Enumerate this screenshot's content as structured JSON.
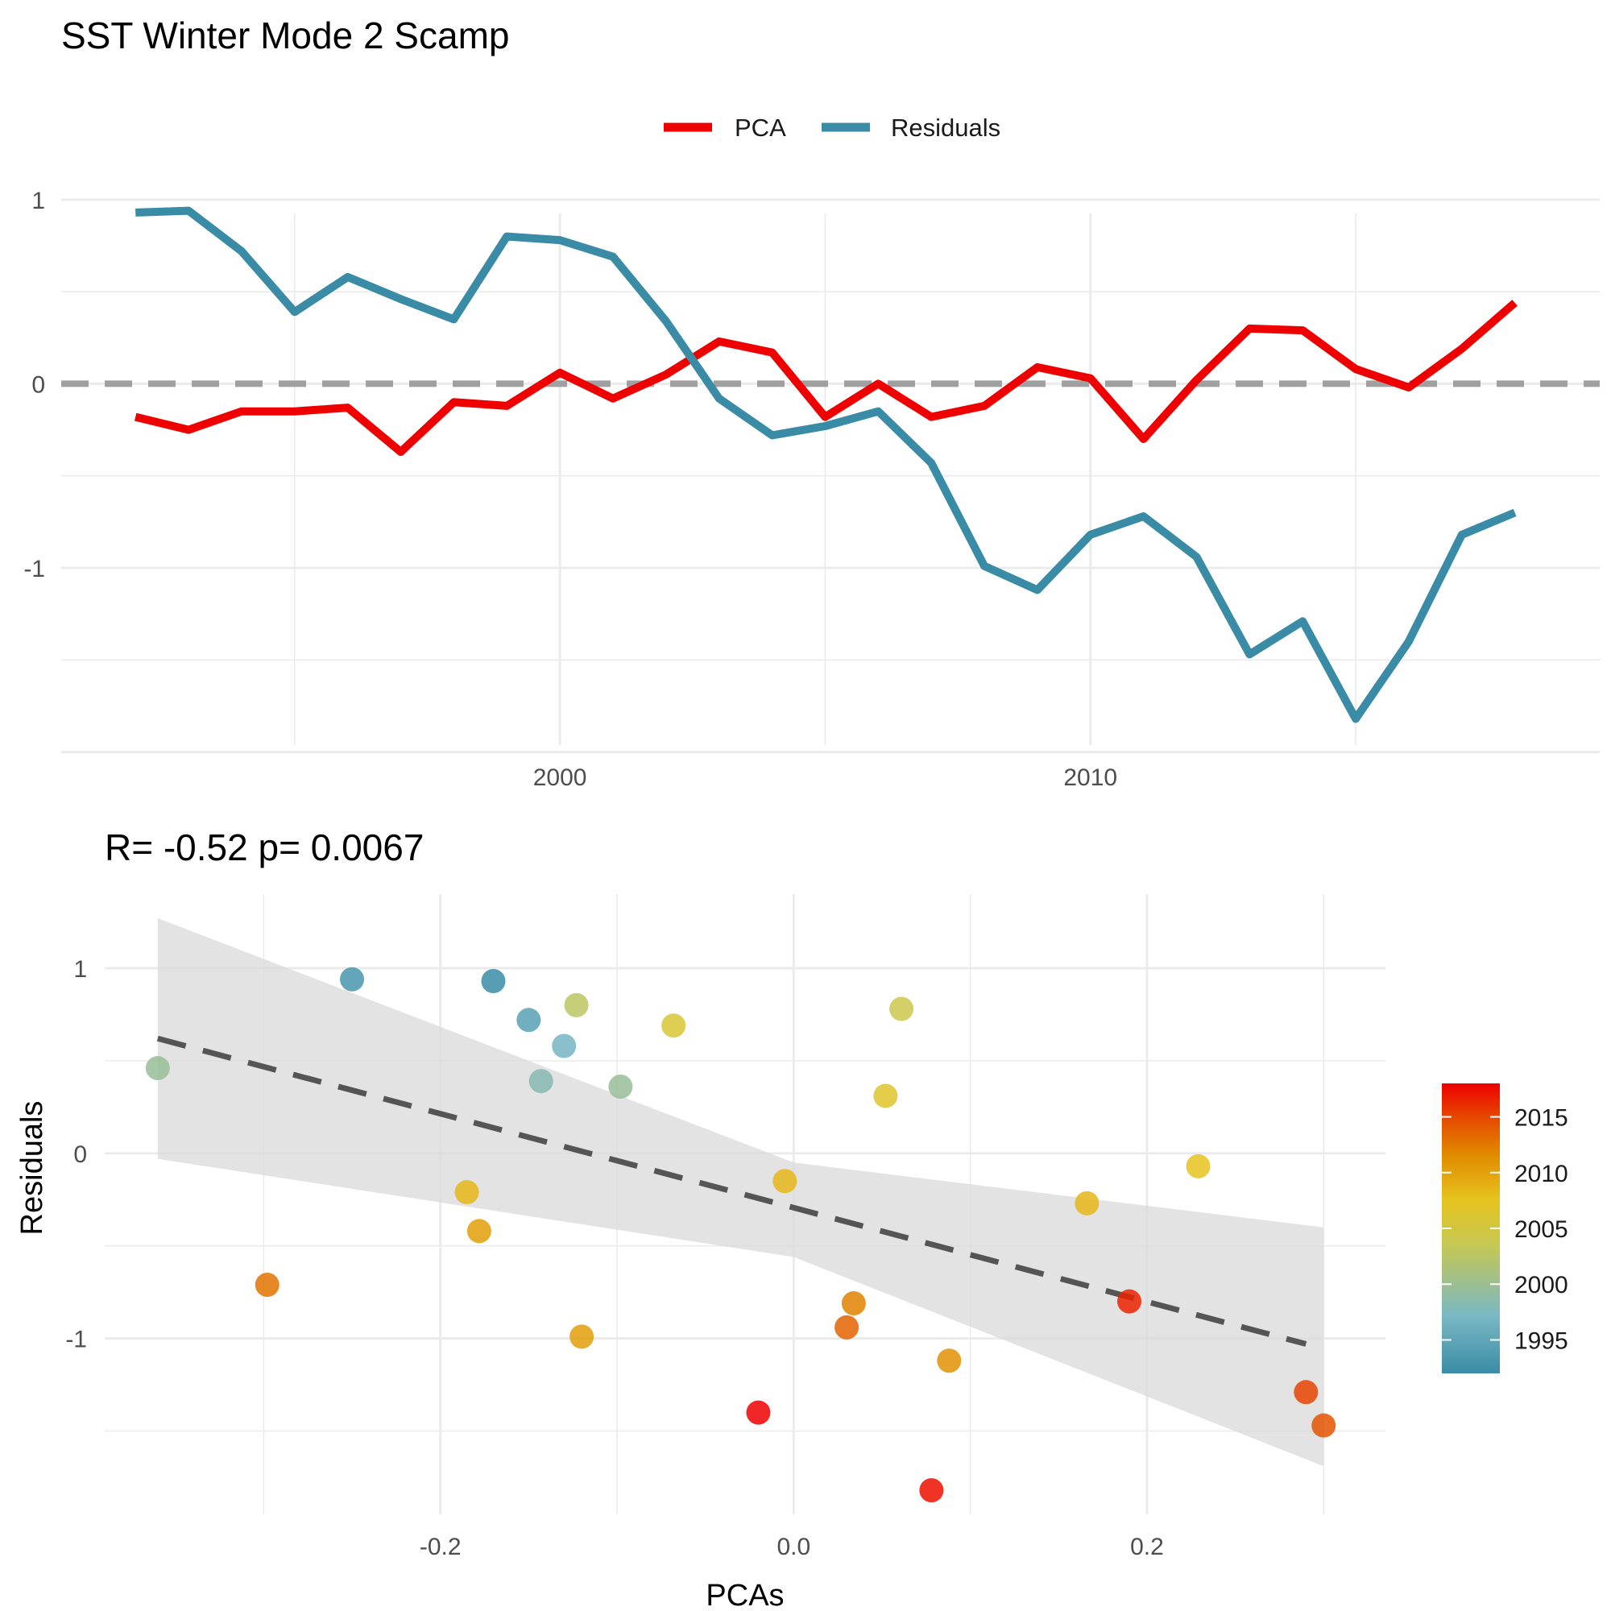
{
  "title": "SST Winter Mode 2 Scamp",
  "chart_data": [
    {
      "type": "line",
      "title": "SST Winter Mode 2 Scamp",
      "legend": {
        "placement": "top",
        "entries": [
          "PCA",
          "Residuals"
        ]
      },
      "xlim": [
        1990.6,
        2019.6
      ],
      "ylim": [
        -2.05,
        1.1
      ],
      "x_ticks": [
        2000,
        2010
      ],
      "x_tick_labels": [
        "2000",
        "2010"
      ],
      "y_ticks": [
        -1,
        0,
        1
      ],
      "y_tick_labels": [
        "-1",
        "0",
        "1"
      ],
      "grid": true,
      "reference_line": {
        "y": 0,
        "style": "dashed",
        "color": "#a0a0a0"
      },
      "x": [
        1992,
        1993,
        1994,
        1995,
        1996,
        1997,
        1998,
        1999,
        2000,
        2001,
        2002,
        2003,
        2004,
        2005,
        2006,
        2007,
        2008,
        2009,
        2010,
        2011,
        2012,
        2013,
        2014,
        2015,
        2016,
        2017,
        2018
      ],
      "series": [
        {
          "name": "PCA",
          "color": "#ee0000",
          "values": [
            -0.18,
            -0.25,
            -0.15,
            -0.15,
            -0.13,
            -0.37,
            -0.1,
            -0.12,
            0.06,
            -0.08,
            0.05,
            0.23,
            0.17,
            -0.18,
            0.0,
            -0.18,
            -0.12,
            0.09,
            0.03,
            -0.3,
            0.02,
            0.3,
            0.29,
            0.08,
            -0.02,
            0.19,
            0.44
          ]
        },
        {
          "name": "Residuals",
          "color": "#3a8ca6",
          "values": [
            0.93,
            0.94,
            0.72,
            0.39,
            0.58,
            0.46,
            0.35,
            0.8,
            0.78,
            0.69,
            0.34,
            -0.08,
            -0.28,
            -0.23,
            -0.15,
            -0.43,
            -0.99,
            -1.12,
            -0.82,
            -0.72,
            -0.94,
            -1.47,
            -1.29,
            -1.82,
            -1.4,
            -0.82,
            -0.7
          ]
        }
      ]
    },
    {
      "type": "scatter",
      "title": "R= -0.52  p= 0.0067",
      "xlabel": "PCAs",
      "ylabel": "Residuals",
      "xlim": [
        -0.39,
        0.335
      ],
      "ylim": [
        -1.95,
        1.4
      ],
      "x_ticks": [
        -0.2,
        0.0,
        0.2
      ],
      "x_tick_labels": [
        "-0.2",
        "0.0",
        "0.2"
      ],
      "y_ticks": [
        -1,
        0,
        1
      ],
      "y_tick_labels": [
        "-1",
        "0",
        "1"
      ],
      "grid": true,
      "fit": {
        "style": "dashed",
        "x0": -0.36,
        "y0": 0.62,
        "x1": 0.29,
        "y1": -1.03,
        "band_x": [
          -0.36,
          0.0,
          0.3
        ],
        "band_upper": [
          1.27,
          -0.05,
          -0.4
        ],
        "band_lower": [
          -0.03,
          -0.56,
          -1.69
        ]
      },
      "colorbar": {
        "placement": "right",
        "ticks": [
          1995,
          2000,
          2005,
          2010,
          2015
        ],
        "tick_labels": [
          "1995",
          "2000",
          "2005",
          "2010",
          "2015"
        ],
        "range": [
          1992,
          2018
        ],
        "colors": [
          "#3a8ca6",
          "#7ab8c4",
          "#c8c850",
          "#e6c31e",
          "#e08c00",
          "#e54a00",
          "#ee0000"
        ]
      },
      "points": [
        {
          "x": -0.36,
          "y": 0.46,
          "year": 1998
        },
        {
          "x": -0.25,
          "y": 0.94,
          "year": 1993
        },
        {
          "x": -0.17,
          "y": 0.93,
          "year": 1992
        },
        {
          "x": -0.15,
          "y": 0.72,
          "year": 1994
        },
        {
          "x": -0.123,
          "y": 0.8,
          "year": 2000
        },
        {
          "x": -0.13,
          "y": 0.58,
          "year": 1996
        },
        {
          "x": -0.143,
          "y": 0.39,
          "year": 1997
        },
        {
          "x": -0.098,
          "y": 0.36,
          "year": 1998
        },
        {
          "x": -0.068,
          "y": 0.69,
          "year": 2003
        },
        {
          "x": 0.061,
          "y": 0.78,
          "year": 2001
        },
        {
          "x": 0.052,
          "y": 0.31,
          "year": 2004
        },
        {
          "x": -0.185,
          "y": -0.21,
          "year": 2006
        },
        {
          "x": -0.178,
          "y": -0.42,
          "year": 2008
        },
        {
          "x": -0.298,
          "y": -0.71,
          "year": 2011
        },
        {
          "x": -0.12,
          "y": -0.99,
          "year": 2008
        },
        {
          "x": -0.005,
          "y": -0.15,
          "year": 2006
        },
        {
          "x": 0.034,
          "y": -0.81,
          "year": 2010
        },
        {
          "x": 0.03,
          "y": -0.94,
          "year": 2012
        },
        {
          "x": 0.088,
          "y": -1.12,
          "year": 2009
        },
        {
          "x": -0.02,
          "y": -1.4,
          "year": 2018
        },
        {
          "x": 0.078,
          "y": -1.82,
          "year": 2017
        },
        {
          "x": 0.166,
          "y": -0.27,
          "year": 2006
        },
        {
          "x": 0.229,
          "y": -0.07,
          "year": 2005
        },
        {
          "x": 0.19,
          "y": -0.8,
          "year": 2016
        },
        {
          "x": 0.29,
          "y": -1.29,
          "year": 2014
        },
        {
          "x": 0.3,
          "y": -1.47,
          "year": 2013
        }
      ]
    }
  ]
}
